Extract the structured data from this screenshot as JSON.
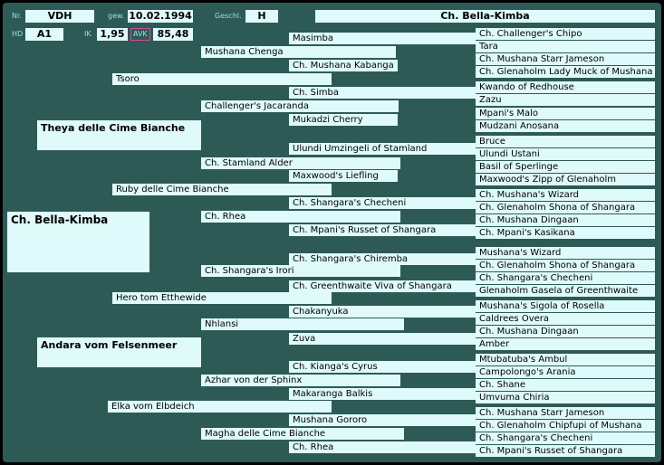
{
  "header": {
    "nr_label": "Nr.",
    "nr_value": "VDH",
    "gew_label": "gew.",
    "gew_value": "10.02.1994",
    "geschl_label": "Geschl.",
    "geschl_value": "H",
    "name_value": "Ch. Bella-Kimba",
    "hd_label": "HD",
    "hd_value": "A1",
    "ik_label": "IK",
    "ik_value": "1,95",
    "avk_label": "AVK",
    "avk_value": "85,48"
  },
  "subject": "Ch. Bella-Kimba",
  "parents": [
    "Theya delle Cime Bianche",
    "Andara vom Felsenmeer"
  ],
  "grandparents": [
    "Tsoro",
    "Ruby delle Cime Bianche",
    "Hero tom Etthewide",
    "Elka vom Elbdeich"
  ],
  "great_grandparents": [
    "Mushana Chenga",
    "Challenger's Jacaranda",
    "Ch. Stamland Alder",
    "Ch.  Rhea",
    "Ch. Shangara's Irori",
    "Nhlansi",
    "Azhar von der Sphinx",
    "Magha delle Cime Bianche"
  ],
  "gen4": [
    "Masimba",
    "Ch. Mushana Kabanga",
    "Ch. Simba",
    "Mukadzi Cherry",
    "Ulundi Umzingeli of Stamland",
    "Maxwood's Liefling",
    "Ch. Shangara's Checheni",
    "Ch. Mpani's Russet of Shangara",
    "Ch. Shangara's Chiremba",
    "Ch. Greenthwaite Viva of Shangara",
    "Chakanyuka",
    "Zuva",
    "Ch. Kianga's Cyrus",
    "Makaranga Balkis",
    "Mushana Gororo",
    "Ch.  Rhea"
  ],
  "gen5": [
    "Ch. Challenger's Chipo",
    "Tara",
    "Ch. Mushana Starr Jameson",
    "Ch. Glenaholm Lady Muck of Mushana",
    "Kwando of Redhouse",
    "Zazu",
    "Mpani's Malo",
    "Mudzani Anosana",
    "Bruce",
    "Ulundi Ustani",
    "Basil of Sperlinge",
    "Maxwood's Zipp of Glenaholm",
    "Ch. Mushana's Wizard",
    "Ch. Glenaholm Shona of Shangara",
    "Ch. Mushana Dingaan",
    "Ch. Mpani's Kasikana",
    "Mushana's Wizard",
    "Ch. Glenaholm Shona of Shangara",
    "Ch. Shangara's Checheni",
    "Glenaholm Gasela of Greenthwaite",
    "Mushana's Sigola of Rosella",
    "Caldrees Overa",
    "Ch. Mushana Dingaan",
    "Amber",
    "Mtubatuba's Ambul",
    "Campolongo's Arania",
    "Ch. Shane",
    "Umvuma Chiria",
    "Ch. Mushana Starr Jameson",
    "Ch. Glenaholm Chipfupi of Mushana",
    "Ch. Shangara's Checheni",
    "Ch. Mpani's Russet of Shangara"
  ],
  "colors": {
    "background": "#2e5a56",
    "cell": "#dffafb",
    "label": "#8fe3e0",
    "avk_border": "#d24a9a"
  }
}
